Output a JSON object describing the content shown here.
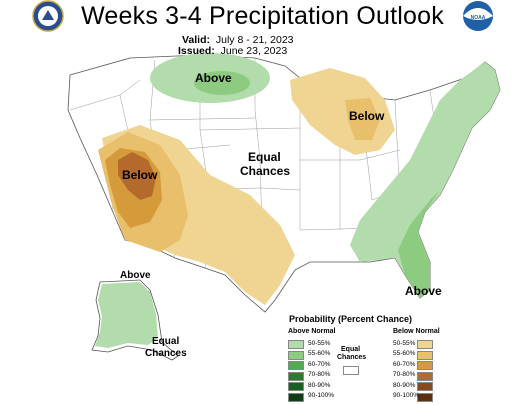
{
  "title": "Weeks 3-4 Precipitation Outlook",
  "valid_label": "Valid:",
  "valid_dates": "July 8 - 21, 2023",
  "issued_label": "Issued:",
  "issued_date": "June 23, 2023",
  "logos": {
    "left": "doc-seal-icon",
    "right": "noaa-logo-icon",
    "noaa_text": "NOAA"
  },
  "map_labels": {
    "north_plains": "Above",
    "great_lakes": "Below",
    "southwest": "Below",
    "central_1": "Equal",
    "central_2": "Chances",
    "southeast": "Above",
    "alaska_above": "Above",
    "alaska_eq_1": "Equal",
    "alaska_eq_2": "Chances"
  },
  "legend": {
    "title": "Probability (Percent Chance)",
    "above_header": "Above Normal",
    "below_header": "Below Normal",
    "equal_1": "Equal",
    "equal_2": "Chances",
    "ranges": [
      "50-55%",
      "55-60%",
      "60-70%",
      "70-80%",
      "80-90%",
      "90-100%"
    ],
    "above_colors": [
      "#b3dcac",
      "#8dcb80",
      "#4fab4d",
      "#2b7d2e",
      "#1b5e22",
      "#0f3d14"
    ],
    "below_colors": [
      "#f0d491",
      "#e8bf6a",
      "#d59b3b",
      "#b46a2c",
      "#8a4a1f",
      "#5e2e10"
    ],
    "equal_color": "#ffffff"
  }
}
